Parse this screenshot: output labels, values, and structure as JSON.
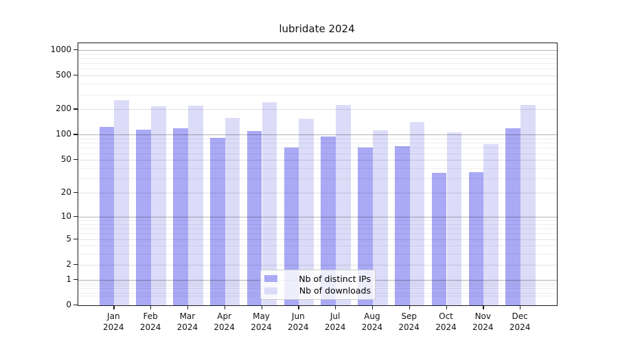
{
  "title": "lubridate 2024",
  "chart_data": {
    "type": "bar",
    "title": "lubridate 2024",
    "categories": [
      "Jan",
      "Feb",
      "Mar",
      "Apr",
      "May",
      "Jun",
      "Jul",
      "Aug",
      "Sep",
      "Oct",
      "Nov",
      "Dec"
    ],
    "category_year": "2024",
    "series": [
      {
        "name": "Nb of distinct IPs",
        "color": "#a9a9f5",
        "values": [
          125,
          114,
          120,
          91,
          110,
          71,
          95,
          70,
          73,
          35,
          36,
          119
        ]
      },
      {
        "name": "Nb of downloads",
        "color": "#dcdcf9",
        "values": [
          257,
          216,
          220,
          158,
          242,
          154,
          224,
          112,
          140,
          107,
          78,
          227
        ]
      }
    ],
    "y_scale": "log1p",
    "y_max": 1200,
    "y_ticks": [
      0,
      1,
      2,
      5,
      10,
      20,
      50,
      100,
      200,
      500,
      1000
    ],
    "y_gridlines_dark": [
      1,
      10,
      100,
      1000
    ],
    "y_gridlines_mid": [
      2,
      5,
      20,
      50,
      200,
      500
    ],
    "y_gridlines_minor": [
      0.3,
      0.4,
      0.6,
      0.7,
      0.8,
      0.9,
      3,
      4,
      6,
      7,
      8,
      9,
      30,
      40,
      60,
      70,
      80,
      90,
      300,
      400,
      600,
      700,
      800,
      900
    ],
    "grid": true,
    "legend_position": "lower center",
    "xlabel": "",
    "ylabel": ""
  },
  "colors": {
    "bar_distinct_ips": "#a9a9f5",
    "bar_downloads": "#dcdcf9",
    "spine": "#1a1a1a",
    "background": "#ffffff"
  }
}
